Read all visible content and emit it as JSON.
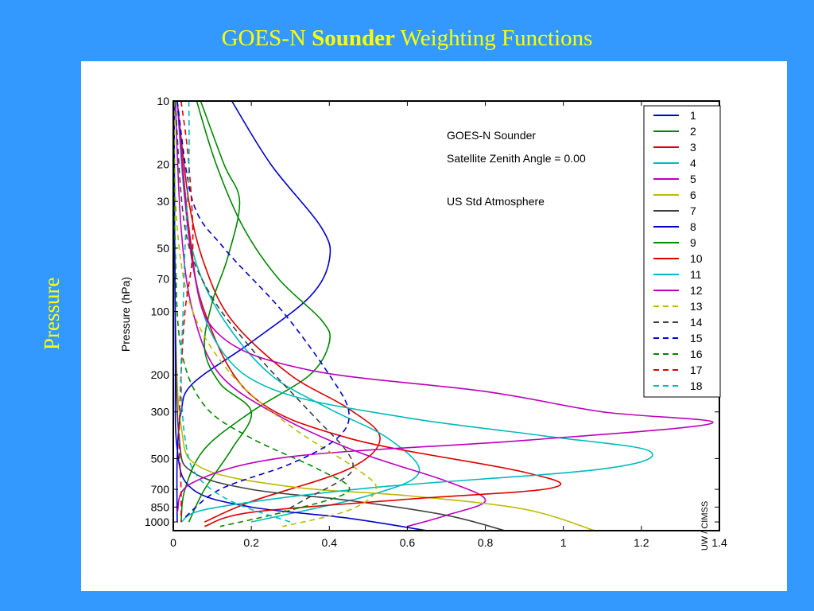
{
  "slide": {
    "title_prefix": "GOES-N ",
    "title_bold": "Sounder",
    "title_suffix": " Weighting Functions",
    "side_label": "Pressure"
  },
  "chart_data": {
    "type": "line",
    "title": "",
    "xlabel": "",
    "ylabel": "Pressure (hPa)",
    "y_scale": "log",
    "y_inverted": true,
    "xlim": [
      0,
      1.4
    ],
    "ylim": [
      10,
      1100
    ],
    "x_ticks": [
      0,
      0.2,
      0.4,
      0.6,
      0.8,
      1,
      1.2,
      1.4
    ],
    "x_tick_labels": [
      "0",
      "0.2",
      "0.4",
      "0.6",
      "0.8",
      "1",
      "1.2",
      "1.4"
    ],
    "y_ticks": [
      10,
      20,
      30,
      50,
      70,
      100,
      200,
      300,
      500,
      700,
      850,
      1000
    ],
    "y_tick_labels": [
      "10",
      "20",
      "30",
      "50",
      "70",
      "100",
      "200",
      "300",
      "500",
      "700",
      "850",
      "1000"
    ],
    "grid": false,
    "legend_position": "top-right",
    "annotations": [
      "GOES-N Sounder",
      "Satellite Zenith Angle = 0.00",
      "US Std Atmosphere"
    ],
    "credit": "UW / CIMSS",
    "series": [
      {
        "name": "1",
        "color": "#0000cc",
        "dash": false,
        "points": [
          [
            0.15,
            10
          ],
          [
            0.25,
            20
          ],
          [
            0.38,
            40
          ],
          [
            0.4,
            57
          ],
          [
            0.35,
            85
          ],
          [
            0.2,
            140
          ],
          [
            0.05,
            220
          ],
          [
            0.02,
            300
          ],
          [
            0.01,
            500
          ],
          [
            0.01,
            1000
          ]
        ]
      },
      {
        "name": "2",
        "color": "#008800",
        "dash": false,
        "points": [
          [
            0.06,
            10
          ],
          [
            0.11,
            20
          ],
          [
            0.18,
            40
          ],
          [
            0.27,
            70
          ],
          [
            0.38,
            110
          ],
          [
            0.4,
            140
          ],
          [
            0.35,
            200
          ],
          [
            0.2,
            300
          ],
          [
            0.08,
            450
          ],
          [
            0.03,
            700
          ],
          [
            0.02,
            1000
          ]
        ]
      },
      {
        "name": "3",
        "color": "#dd0000",
        "dash": false,
        "points": [
          [
            0.01,
            10
          ],
          [
            0.04,
            30
          ],
          [
            0.08,
            60
          ],
          [
            0.15,
            110
          ],
          [
            0.3,
            200
          ],
          [
            0.45,
            290
          ],
          [
            0.53,
            400
          ],
          [
            0.45,
            560
          ],
          [
            0.2,
            800
          ],
          [
            0.08,
            1000
          ]
        ]
      },
      {
        "name": "4",
        "color": "#00bbbb",
        "dash": false,
        "points": [
          [
            0.01,
            10
          ],
          [
            0.03,
            30
          ],
          [
            0.06,
            60
          ],
          [
            0.13,
            110
          ],
          [
            0.25,
            200
          ],
          [
            0.4,
            290
          ],
          [
            0.55,
            400
          ],
          [
            0.63,
            580
          ],
          [
            0.5,
            750
          ],
          [
            0.2,
            1000
          ]
        ]
      },
      {
        "name": "5",
        "color": "#bb00bb",
        "dash": false,
        "points": [
          [
            0.005,
            10
          ],
          [
            0.02,
            40
          ],
          [
            0.05,
            100
          ],
          [
            0.12,
            200
          ],
          [
            0.28,
            320
          ],
          [
            0.48,
            470
          ],
          [
            0.7,
            640
          ],
          [
            0.8,
            790
          ],
          [
            0.7,
            930
          ],
          [
            0.6,
            1050
          ]
        ]
      },
      {
        "name": "6",
        "color": "#bbbb00",
        "dash": false,
        "points": [
          [
            0.002,
            10
          ],
          [
            0.005,
            100
          ],
          [
            0.02,
            350
          ],
          [
            0.07,
            550
          ],
          [
            0.3,
            680
          ],
          [
            0.6,
            750
          ],
          [
            0.9,
            870
          ],
          [
            1.08,
            1100
          ]
        ]
      },
      {
        "name": "7",
        "color": "#404040",
        "dash": false,
        "points": [
          [
            0.002,
            10
          ],
          [
            0.005,
            100
          ],
          [
            0.015,
            400
          ],
          [
            0.05,
            580
          ],
          [
            0.2,
            700
          ],
          [
            0.45,
            790
          ],
          [
            0.7,
            930
          ],
          [
            0.85,
            1100
          ]
        ]
      },
      {
        "name": "8",
        "color": "#0000cc",
        "dash": false,
        "points": [
          [
            0.002,
            10
          ],
          [
            0.005,
            150
          ],
          [
            0.01,
            450
          ],
          [
            0.05,
            700
          ],
          [
            0.2,
            850
          ],
          [
            0.45,
            960
          ],
          [
            0.65,
            1100
          ]
        ]
      },
      {
        "name": "9",
        "color": "#008800",
        "dash": false,
        "points": [
          [
            0.07,
            10
          ],
          [
            0.13,
            20
          ],
          [
            0.17,
            30
          ],
          [
            0.14,
            55
          ],
          [
            0.1,
            90
          ],
          [
            0.08,
            150
          ],
          [
            0.12,
            220
          ],
          [
            0.2,
            300
          ],
          [
            0.15,
            450
          ],
          [
            0.08,
            700
          ],
          [
            0.04,
            1000
          ]
        ]
      },
      {
        "name": "10",
        "color": "#dd0000",
        "dash": false,
        "points": [
          [
            0.01,
            10
          ],
          [
            0.04,
            40
          ],
          [
            0.08,
            100
          ],
          [
            0.2,
            250
          ],
          [
            0.45,
            400
          ],
          [
            0.9,
            580
          ],
          [
            0.97,
            690
          ],
          [
            0.6,
            780
          ],
          [
            0.2,
            900
          ],
          [
            0.08,
            1050
          ]
        ]
      },
      {
        "name": "11",
        "color": "#00bbbb",
        "dash": false,
        "points": [
          [
            0.01,
            10
          ],
          [
            0.05,
            60
          ],
          [
            0.12,
            150
          ],
          [
            0.27,
            240
          ],
          [
            0.6,
            320
          ],
          [
            0.95,
            390
          ],
          [
            1.22,
            460
          ],
          [
            1.1,
            560
          ],
          [
            0.5,
            690
          ],
          [
            0.1,
            860
          ],
          [
            0.02,
            1000
          ]
        ]
      },
      {
        "name": "12",
        "color": "#bb00bb",
        "dash": false,
        "points": [
          [
            0.01,
            10
          ],
          [
            0.05,
            60
          ],
          [
            0.12,
            130
          ],
          [
            0.35,
            190
          ],
          [
            0.8,
            240
          ],
          [
            1.1,
            300
          ],
          [
            1.38,
            340
          ],
          [
            0.9,
            410
          ],
          [
            0.3,
            490
          ],
          [
            0.05,
            650
          ],
          [
            0.01,
            900
          ]
        ]
      },
      {
        "name": "13",
        "color": "#bbbb00",
        "dash": true,
        "points": [
          [
            0.002,
            10
          ],
          [
            0.01,
            40
          ],
          [
            0.05,
            100
          ],
          [
            0.15,
            200
          ],
          [
            0.3,
            350
          ],
          [
            0.47,
            560
          ],
          [
            0.52,
            700
          ],
          [
            0.45,
            880
          ],
          [
            0.28,
            1050
          ]
        ]
      },
      {
        "name": "14",
        "color": "#404040",
        "dash": true,
        "points": [
          [
            0.005,
            10
          ],
          [
            0.03,
            40
          ],
          [
            0.09,
            80
          ],
          [
            0.2,
            150
          ],
          [
            0.35,
            300
          ],
          [
            0.44,
            450
          ],
          [
            0.46,
            560
          ],
          [
            0.42,
            650
          ],
          [
            0.35,
            760
          ],
          [
            0.28,
            900
          ]
        ]
      },
      {
        "name": "15",
        "color": "#0000cc",
        "dash": true,
        "points": [
          [
            0.01,
            10
          ],
          [
            0.05,
            30
          ],
          [
            0.13,
            50
          ],
          [
            0.28,
            100
          ],
          [
            0.4,
            200
          ],
          [
            0.45,
            300
          ],
          [
            0.42,
            400
          ],
          [
            0.3,
            530
          ],
          [
            0.12,
            700
          ],
          [
            0.03,
            950
          ]
        ]
      },
      {
        "name": "16",
        "color": "#008800",
        "dash": true,
        "points": [
          [
            0.001,
            10
          ],
          [
            0.005,
            50
          ],
          [
            0.02,
            150
          ],
          [
            0.08,
            280
          ],
          [
            0.2,
            400
          ],
          [
            0.37,
            560
          ],
          [
            0.45,
            710
          ],
          [
            0.3,
            880
          ],
          [
            0.12,
            1050
          ]
        ]
      },
      {
        "name": "17",
        "color": "#dd0000",
        "dash": true,
        "points": [
          [
            0.02,
            10
          ],
          [
            0.04,
            20
          ],
          [
            0.05,
            50
          ],
          [
            0.03,
            100
          ],
          [
            0.02,
            200
          ],
          [
            0.015,
            400
          ],
          [
            0.02,
            700
          ],
          [
            0.02,
            1000
          ]
        ]
      },
      {
        "name": "18",
        "color": "#00bbbb",
        "dash": true,
        "points": [
          [
            0.04,
            10
          ],
          [
            0.04,
            20
          ],
          [
            0.03,
            50
          ],
          [
            0.025,
            100
          ],
          [
            0.02,
            200
          ],
          [
            0.03,
            400
          ],
          [
            0.06,
            600
          ],
          [
            0.15,
            800
          ],
          [
            0.3,
            1000
          ]
        ]
      }
    ]
  }
}
